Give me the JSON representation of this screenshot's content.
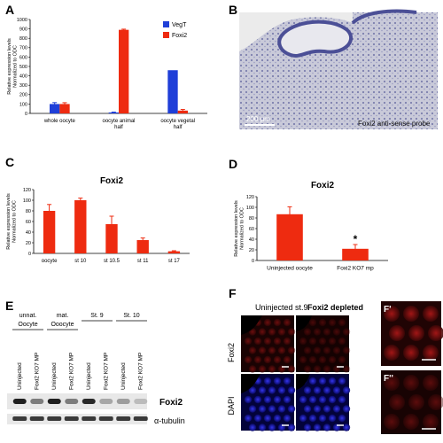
{
  "panels": {
    "a": "A",
    "b": "B",
    "c": "C",
    "d": "D",
    "e": "E",
    "f": "F"
  },
  "chart_data": [
    {
      "type": "bar",
      "panel": "A",
      "title": "",
      "ylabel": "Relative expression levels Normalized to ODC",
      "ylabel_lines": [
        "Relative expression levels",
        "Normalized to ODC"
      ],
      "xlabel": "",
      "categories": [
        "whole oocyte",
        "oocyte animal half",
        "oocyte vegetal half"
      ],
      "category_lines": [
        [
          "whole oocyte"
        ],
        [
          "oocyte animal",
          "half"
        ],
        [
          "oocyte vegetal",
          "half"
        ]
      ],
      "ylim": [
        0,
        1000
      ],
      "yticks": [
        0,
        100,
        200,
        300,
        400,
        500,
        600,
        700,
        800,
        900,
        1000
      ],
      "ytick_labels": [
        "0",
        "100",
        "200",
        "300",
        "400",
        "500",
        "600",
        "700",
        "800",
        "900",
        "1000"
      ],
      "legend_position": "top-right",
      "series": [
        {
          "name": "VegT",
          "color": "#1f3fd8",
          "values": [
            100,
            10,
            460
          ],
          "errors": [
            15,
            4,
            0
          ]
        },
        {
          "name": "Foxi2",
          "color": "#ee2b10",
          "values": [
            100,
            890,
            30
          ],
          "errors": [
            14,
            7,
            12
          ]
        }
      ]
    },
    {
      "type": "bar",
      "panel": "C",
      "title": "Foxi2",
      "ylabel": "Relative expression levels Normalized to ODC",
      "ylabel_lines": [
        "Relative expression levels",
        "Normalized to ODC"
      ],
      "xlabel": "",
      "categories": [
        "oocyte",
        "st 10",
        "st 10.5",
        "st 11",
        "st 17"
      ],
      "ylim": [
        0,
        120
      ],
      "yticks": [
        0,
        20,
        40,
        60,
        80,
        100,
        120
      ],
      "ytick_labels": [
        "0",
        "20",
        "40",
        "60",
        "80",
        "100",
        "120"
      ],
      "color": "#ee2b10",
      "values": [
        80,
        100,
        55,
        25,
        4
      ],
      "errors": [
        12,
        4,
        15,
        4,
        1
      ]
    },
    {
      "type": "bar",
      "panel": "D",
      "title": "Foxi2",
      "ylabel": "Relative expression levels Normalized to ODC",
      "ylabel_lines": [
        "Relative expression levels",
        "Normalized to ODC"
      ],
      "xlabel": "",
      "categories": [
        "Uninjected oocyte",
        "Foxi2 KO7 mp"
      ],
      "ylim": [
        0,
        120
      ],
      "yticks": [
        0,
        20,
        40,
        60,
        80,
        100,
        120
      ],
      "ytick_labels": [
        "0",
        "20",
        "40",
        "60",
        "80",
        "100",
        "120"
      ],
      "color": "#ee2b10",
      "values": [
        87,
        22
      ],
      "errors": [
        14,
        8
      ],
      "annotations": [
        {
          "category": "Foxi2 KO7 mp",
          "text": "*"
        }
      ]
    }
  ],
  "panel_b": {
    "scale_bar": "200 μm",
    "caption": "Foxi2 anti-sense probe"
  },
  "panel_e": {
    "groups": [
      {
        "lines": [
          "unnat.",
          "Oocyte"
        ]
      },
      {
        "lines": [
          "mat.",
          "Ooocyte"
        ]
      },
      {
        "lines": [
          "St. 9"
        ]
      },
      {
        "lines": [
          "St. 10"
        ]
      }
    ],
    "lanes": [
      "Uninjected",
      "Foxi2 KO7 MP",
      "Uninjected",
      "Foxi2 KO7 MP",
      "Uninjected",
      "Foxi2 KO7 MP",
      "Uninjected",
      "Foxi2 KO7 MP"
    ],
    "foxi2_band_levels": [
      0.95,
      0.5,
      0.95,
      0.5,
      0.9,
      0.3,
      0.35,
      0.2
    ],
    "row_labels": {
      "foxi2": "Foxi2",
      "tubulin": "α-tubulin"
    }
  },
  "panel_f": {
    "col_headers": [
      "Uninjected st.9",
      "Foxi2 depleted"
    ],
    "row_labels": [
      "Foxi2",
      "DAPI"
    ],
    "inset_labels": [
      "F'",
      "F''"
    ]
  }
}
